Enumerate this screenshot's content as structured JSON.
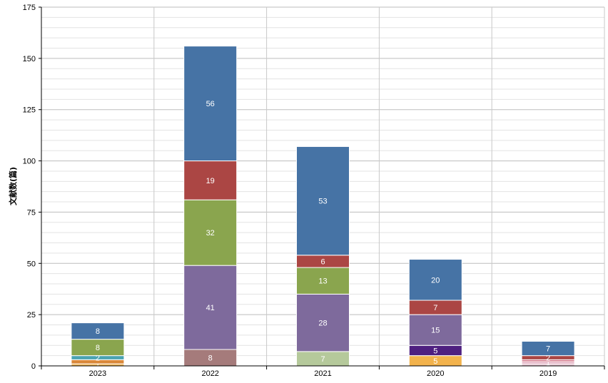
{
  "chart_data": {
    "type": "bar",
    "stacked": true,
    "title": "",
    "xlabel": "",
    "ylabel": "文献数(篇)",
    "ylim": [
      0,
      175
    ],
    "yticks": [
      0,
      25,
      50,
      75,
      100,
      125,
      150,
      175
    ],
    "grid": true,
    "legend": "none",
    "categories": [
      "2023",
      "2022",
      "2021",
      "2020",
      "2019"
    ],
    "stacks": [
      {
        "category": "2023",
        "segments": [
          {
            "value": 1,
            "color": "#f2b24c",
            "label": "1"
          },
          {
            "value": 2,
            "color": "#d9883a",
            "label": ""
          },
          {
            "value": 2,
            "color": "#4aa3b2",
            "label": "2"
          },
          {
            "value": 8,
            "color": "#8aa54e",
            "label": "8"
          },
          {
            "value": 8,
            "color": "#4673a5",
            "label": "8"
          }
        ]
      },
      {
        "category": "2022",
        "segments": [
          {
            "value": 8,
            "color": "#a57b7b",
            "label": "8"
          },
          {
            "value": 41,
            "color": "#7e6a9c",
            "label": "41"
          },
          {
            "value": 32,
            "color": "#8aa54e",
            "label": "32"
          },
          {
            "value": 19,
            "color": "#ab4644",
            "label": "19"
          },
          {
            "value": 56,
            "color": "#4673a5",
            "label": "56"
          }
        ]
      },
      {
        "category": "2021",
        "segments": [
          {
            "value": 7,
            "color": "#b5c99b",
            "label": "7"
          },
          {
            "value": 28,
            "color": "#7e6a9c",
            "label": "28"
          },
          {
            "value": 13,
            "color": "#8aa54e",
            "label": "13"
          },
          {
            "value": 6,
            "color": "#ab4644",
            "label": "6"
          },
          {
            "value": 53,
            "color": "#4673a5",
            "label": "53"
          }
        ]
      },
      {
        "category": "2020",
        "segments": [
          {
            "value": 5,
            "color": "#f2b24c",
            "label": "5"
          },
          {
            "value": 5,
            "color": "#4e1f80",
            "label": "5"
          },
          {
            "value": 15,
            "color": "#7e6a9c",
            "label": "15"
          },
          {
            "value": 7,
            "color": "#ab4644",
            "label": "7"
          },
          {
            "value": 20,
            "color": "#4673a5",
            "label": "20"
          }
        ]
      },
      {
        "category": "2019",
        "segments": [
          {
            "value": 1,
            "color": "#e7c4d1",
            "label": ""
          },
          {
            "value": 1,
            "color": "#dfa3b8",
            "label": "1"
          },
          {
            "value": 1,
            "color": "#d47a8c",
            "label": ""
          },
          {
            "value": 2,
            "color": "#ab4644",
            "label": "2"
          },
          {
            "value": 7,
            "color": "#4673a5",
            "label": "7"
          }
        ]
      }
    ]
  }
}
